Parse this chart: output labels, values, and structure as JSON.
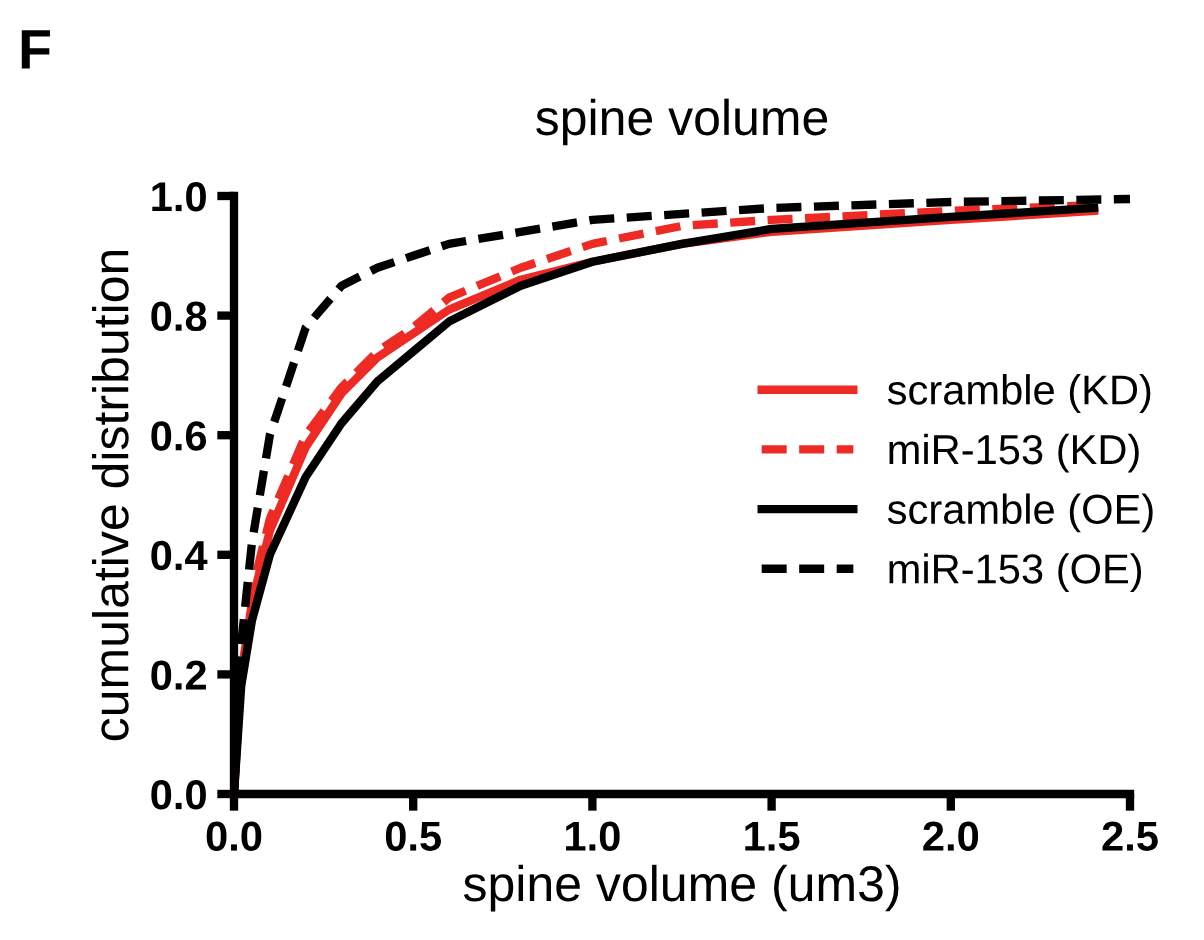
{
  "chart_data": {
    "type": "line",
    "title": "spine volume",
    "xlabel": "spine volume (um3)",
    "ylabel": "cumulative distribution",
    "annotations": [
      "F"
    ],
    "xlim": [
      0,
      2.5
    ],
    "xticks": [
      {
        "value": 0,
        "label": "0.0"
      },
      0.5,
      {
        "value": 1,
        "label": "1.0"
      },
      1.5,
      {
        "value": 2,
        "label": "2.0"
      },
      2.5
    ],
    "ylim": [
      0,
      1
    ],
    "yticks": [
      {
        "value": 0,
        "label": "0.0"
      },
      0.2,
      0.4,
      0.6,
      0.8,
      {
        "value": 1,
        "label": "1.0"
      }
    ],
    "grid": false,
    "legend": "right",
    "marker": "none",
    "series": [
      {
        "name": "scramble (KD)",
        "color": "#ee2a24",
        "line_style": "solid",
        "x": [
          0,
          0.02,
          0.05,
          0.1,
          0.2,
          0.3,
          0.4,
          0.5,
          0.6,
          0.8,
          1.0,
          1.25,
          1.5,
          2.0,
          2.4
        ],
        "values": [
          0,
          0.2,
          0.32,
          0.44,
          0.58,
          0.67,
          0.73,
          0.77,
          0.81,
          0.86,
          0.89,
          0.92,
          0.94,
          0.96,
          0.975
        ]
      },
      {
        "name": "miR-153 (KD)",
        "color": "#ee2a24",
        "line_style": "dashed",
        "x": [
          0,
          0.02,
          0.05,
          0.1,
          0.2,
          0.3,
          0.4,
          0.5,
          0.6,
          0.8,
          1.0,
          1.25,
          1.5,
          2.0,
          2.4
        ],
        "values": [
          0,
          0.22,
          0.34,
          0.46,
          0.6,
          0.68,
          0.74,
          0.78,
          0.83,
          0.88,
          0.92,
          0.95,
          0.96,
          0.975,
          0.985
        ]
      },
      {
        "name": "scramble (OE)",
        "color": "#000000",
        "line_style": "solid",
        "x": [
          0,
          0.02,
          0.05,
          0.1,
          0.2,
          0.3,
          0.4,
          0.5,
          0.6,
          0.8,
          1.0,
          1.25,
          1.5,
          2.0,
          2.4
        ],
        "values": [
          0,
          0.18,
          0.29,
          0.4,
          0.53,
          0.62,
          0.69,
          0.74,
          0.79,
          0.85,
          0.89,
          0.92,
          0.945,
          0.965,
          0.98
        ]
      },
      {
        "name": "miR-153 (OE)",
        "color": "#000000",
        "line_style": "dashed",
        "x": [
          0,
          0.02,
          0.05,
          0.1,
          0.2,
          0.3,
          0.4,
          0.5,
          0.6,
          0.8,
          1.0,
          1.25,
          1.5,
          2.0,
          2.5
        ],
        "values": [
          0,
          0.25,
          0.42,
          0.6,
          0.78,
          0.85,
          0.88,
          0.9,
          0.92,
          0.94,
          0.96,
          0.97,
          0.98,
          0.99,
          0.995
        ]
      }
    ]
  }
}
